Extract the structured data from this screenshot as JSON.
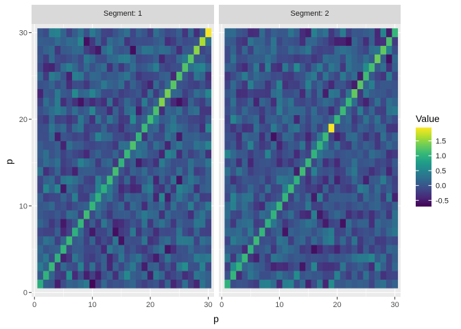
{
  "chart_data": {
    "type": "heatmap",
    "facet_label": "Segment",
    "facets": [
      {
        "label": "Segment: 1",
        "n": 30,
        "diagonal": [
          0.95,
          1.02,
          1.08,
          1.0,
          1.05,
          1.1,
          0.98,
          1.05,
          1.12,
          1.06,
          1.0,
          0.97,
          1.1,
          1.15,
          1.02,
          1.08,
          1.2,
          1.05,
          1.1,
          1.12,
          1.18,
          1.45,
          1.4,
          1.25,
          1.2,
          1.22,
          1.25,
          1.48,
          1.62,
          1.92
        ],
        "off_diagonal_range": [
          -0.7,
          0.7
        ]
      },
      {
        "label": "Segment: 2",
        "n": 30,
        "diagonal": [
          1.0,
          1.05,
          1.02,
          1.08,
          1.0,
          1.1,
          1.05,
          0.98,
          1.02,
          1.08,
          1.05,
          1.1,
          1.0,
          1.12,
          1.08,
          1.02,
          1.05,
          1.1,
          1.92,
          1.05,
          1.1,
          1.08,
          1.3,
          1.25,
          1.12,
          1.15,
          1.35,
          1.3,
          1.18,
          1.05
        ],
        "off_diagonal_range": [
          -0.7,
          0.7
        ]
      }
    ],
    "xlabel": "p",
    "ylabel": "p",
    "x_ticks": [
      0,
      10,
      20,
      30
    ],
    "y_ticks": [
      0,
      10,
      20,
      30
    ],
    "xlim": [
      -0.5,
      31
    ],
    "ylim": [
      -0.5,
      31
    ],
    "legend": {
      "title": "Value",
      "position": "right",
      "breaks": [
        1.5,
        1.0,
        0.5,
        0.0,
        -0.5
      ],
      "break_labels": [
        "1.5",
        "1.0",
        "0.5",
        "0.0",
        "-0.5"
      ],
      "min": -0.7,
      "max": 1.95
    },
    "colormap": [
      "#440154",
      "#482878",
      "#3E4A89",
      "#31688E",
      "#26828E",
      "#1F9E89",
      "#35B779",
      "#6DCD59",
      "#B4DE2C",
      "#FDE725"
    ],
    "panel_background": "#EBEBEB",
    "strip_background": "#D9D9D9",
    "grid": true
  }
}
